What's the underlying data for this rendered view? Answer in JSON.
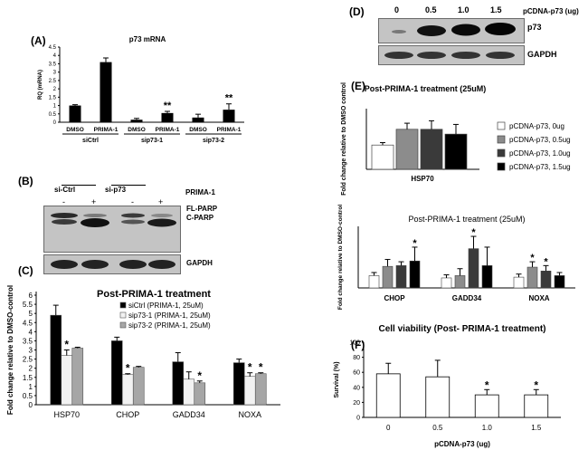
{
  "panels": {
    "A": {
      "label": "(A)",
      "chart_data": {
        "type": "bar",
        "title": "p73 mRNA",
        "ylabel": "RQ (mRNA)",
        "ylim": [
          0,
          4.5
        ],
        "yticks": [
          "0",
          "0.5",
          "1",
          "1.5",
          "2",
          "2.5",
          "3",
          "3.5",
          "4",
          "4.5"
        ],
        "treatments": [
          "DMSO",
          "PRIMA-1",
          "DMSO",
          "PRIMA-1",
          "DMSO",
          "PRIMA-1"
        ],
        "groups": [
          "siCtrl",
          "sip73-1",
          "sip73-2"
        ],
        "values": [
          1.0,
          3.6,
          0.15,
          0.55,
          0.28,
          0.75
        ],
        "errors": [
          0.05,
          0.25,
          0.08,
          0.1,
          0.2,
          0.35
        ],
        "stars": [
          "",
          "",
          "",
          "**",
          "",
          "**"
        ]
      }
    },
    "B": {
      "label": "(B)",
      "groups": [
        "si-Ctrl",
        "si-p73"
      ],
      "treatment_label": "PRIMA-1",
      "signs": [
        "-",
        "+",
        "-",
        "+"
      ],
      "bands": [
        "FL-PARP",
        "C-PARP"
      ],
      "loading": "GAPDH"
    },
    "C": {
      "label": "(C)",
      "chart_data": {
        "type": "bar",
        "title": "Post-PRIMA-1 treatment",
        "ylabel": "Fold change relative to DMSO-control",
        "ylim": [
          0,
          6
        ],
        "yticks": [
          "0",
          "0.5",
          "1",
          "1.5",
          "2",
          "2.5",
          "3",
          "3.5",
          "4",
          "4.5",
          "5",
          "5.5",
          "6"
        ],
        "categories": [
          "HSP70",
          "CHOP",
          "GADD34",
          "NOXA"
        ],
        "series": [
          {
            "name": "siCtrl (PRIMA-1, 25uM)",
            "color": "#000000",
            "values": [
              4.9,
              3.5,
              2.35,
              2.3
            ],
            "errors": [
              0.55,
              0.2,
              0.5,
              0.2
            ],
            "stars": [
              "",
              "",
              "",
              ""
            ]
          },
          {
            "name": "sip73-1 (PRIMA-1, 25uM)",
            "color": "#f2f2f2",
            "values": [
              2.7,
              1.65,
              1.4,
              1.55
            ],
            "errors": [
              0.3,
              0.05,
              0.4,
              0.2
            ],
            "stars": [
              "*",
              "*",
              "",
              "*"
            ]
          },
          {
            "name": "sip73-2 (PRIMA-1, 25uM)",
            "color": "#a6a6a6",
            "values": [
              3.1,
              2.05,
              1.2,
              1.7
            ],
            "errors": [
              0.05,
              0.05,
              0.1,
              0.05
            ],
            "stars": [
              "",
              "",
              "*",
              "*"
            ]
          }
        ]
      }
    },
    "D": {
      "label": "(D)",
      "doses": [
        "0",
        "0.5",
        "1.0",
        "1.5"
      ],
      "title": "pCDNA-p73  (ug)",
      "bands": [
        "p73"
      ],
      "loading": "GAPDH"
    },
    "E": {
      "label": "(E)",
      "top": {
        "chart_data": {
          "type": "bar",
          "title": "Post-PRIMA-1 treatment (25uM)",
          "ylabel": "Fold change relative to DMSO control",
          "ylim": [
            0,
            2.5
          ],
          "categories": [
            "HSP70"
          ],
          "series": [
            {
              "name": "pCDNA-p73, 0ug",
              "color": "#ffffff",
              "values": [
                1.0
              ],
              "errors": [
                0.1
              ]
            },
            {
              "name": "pCDNA-p73, 0.5ug",
              "color": "#8c8c8c",
              "values": [
                1.65
              ],
              "errors": [
                0.25
              ]
            },
            {
              "name": "pCDNA-p73, 1.0ug",
              "color": "#3a3a3a",
              "values": [
                1.65
              ],
              "errors": [
                0.35
              ]
            },
            {
              "name": "pCDNA-p73, 1.5ug",
              "color": "#000000",
              "values": [
                1.45
              ],
              "errors": [
                0.4
              ]
            }
          ]
        }
      },
      "bottom": {
        "chart_data": {
          "type": "bar",
          "title": "Post-PRIMA-1 treatment (25uM)",
          "ylabel": "Fold change relative to DMSO-control",
          "ylim": [
            0,
            8
          ],
          "categories": [
            "CHOP",
            "GADD34",
            "NOXA"
          ],
          "series": [
            {
              "name": "pCDNA-p73, 0ug",
              "color": "#ffffff",
              "values": [
                1.6,
                1.3,
                1.4
              ],
              "errors": [
                0.4,
                0.4,
                0.4
              ],
              "stars": [
                "",
                "",
                ""
              ]
            },
            {
              "name": "pCDNA-p73, 0.5ug",
              "color": "#8c8c8c",
              "values": [
                2.8,
                1.6,
                2.7
              ],
              "errors": [
                0.9,
                0.9,
                0.7
              ],
              "stars": [
                "",
                "",
                "*"
              ]
            },
            {
              "name": "pCDNA-p73, 1.0ug",
              "color": "#3a3a3a",
              "values": [
                2.9,
                5.1,
                2.2
              ],
              "errors": [
                0.5,
                1.6,
                0.7
              ],
              "stars": [
                "",
                "*",
                "*"
              ]
            },
            {
              "name": "pCDNA-p73, 1.5ug",
              "color": "#000000",
              "values": [
                3.5,
                2.9,
                1.6
              ],
              "errors": [
                1.8,
                2.4,
                0.4
              ],
              "stars": [
                "*",
                "",
                ""
              ]
            }
          ]
        }
      }
    },
    "F": {
      "label": "(F)",
      "chart_data": {
        "type": "bar",
        "title": "Cell viability (Post- PRIMA-1 treatment)",
        "ylabel": "Survival (%)",
        "xlabel": "pCDNA-p73 (ug)",
        "ylim": [
          0,
          100
        ],
        "yticks": [
          "0",
          "20",
          "40",
          "60",
          "80",
          "100"
        ],
        "categories": [
          "0",
          "0.5",
          "1.0",
          "1.5"
        ],
        "values": [
          58,
          54,
          30,
          30
        ],
        "errors": [
          14,
          22,
          7,
          7
        ],
        "stars": [
          "",
          "",
          "*",
          "*"
        ]
      }
    }
  }
}
